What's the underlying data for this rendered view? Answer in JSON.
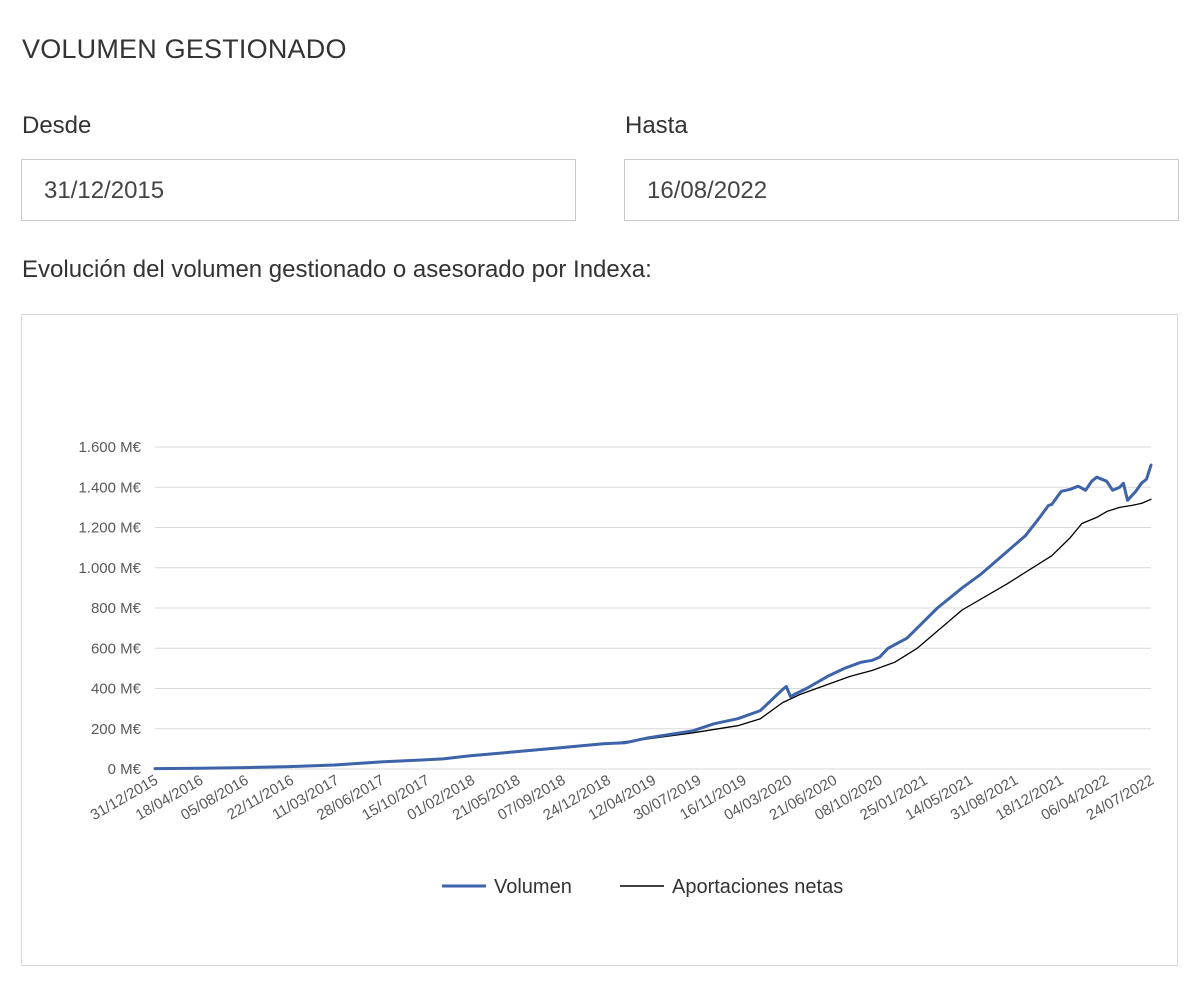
{
  "page": {
    "title": "VOLUMEN GESTIONADO",
    "from_label": "Desde",
    "to_label": "Hasta",
    "from_value": "31/12/2015",
    "to_value": "16/08/2022",
    "chart_caption": "Evolución del volumen gestionado o asesorado por Indexa:"
  },
  "colors": {
    "volumen": "#3d63a8",
    "aportaciones": "#000000",
    "grid": "#d9d9d9",
    "axis_text": "#595959"
  },
  "chart_data": {
    "type": "line",
    "title": "",
    "xlabel": "",
    "ylabel": "",
    "y_unit_suffix": " M€",
    "ylim": [
      0,
      1600
    ],
    "yticks": [
      0,
      200,
      400,
      600,
      800,
      1000,
      1200,
      1400,
      1600
    ],
    "ytick_labels": [
      "0 M€",
      "200 M€",
      "400 M€",
      "600 M€",
      "800 M€",
      "1.000 M€",
      "1.200 M€",
      "1.400 M€",
      "1.600 M€"
    ],
    "xrange": [
      "2015-12-31",
      "2022-08-16"
    ],
    "xtick_labels": [
      "31/12/2015",
      "18/04/2016",
      "05/08/2016",
      "22/11/2016",
      "11/03/2017",
      "28/06/2017",
      "15/10/2017",
      "01/02/2018",
      "21/05/2018",
      "07/09/2018",
      "24/12/2018",
      "12/04/2019",
      "30/07/2019",
      "16/11/2019",
      "04/03/2020",
      "21/06/2020",
      "08/10/2020",
      "25/01/2021",
      "14/05/2021",
      "31/08/2021",
      "18/12/2021",
      "06/04/2022",
      "24/07/2022"
    ],
    "grid": true,
    "legend_position": "bottom",
    "series": [
      {
        "name": "Volumen",
        "points": [
          [
            "2015-12-31",
            2
          ],
          [
            "2016-04-18",
            4
          ],
          [
            "2016-08-05",
            7
          ],
          [
            "2016-11-22",
            12
          ],
          [
            "2017-03-11",
            20
          ],
          [
            "2017-06-28",
            35
          ],
          [
            "2017-10-15",
            45
          ],
          [
            "2017-11-30",
            50
          ],
          [
            "2018-02-01",
            65
          ],
          [
            "2018-05-21",
            85
          ],
          [
            "2018-09-07",
            105
          ],
          [
            "2018-12-24",
            125
          ],
          [
            "2019-02-15",
            130
          ],
          [
            "2019-04-12",
            155
          ],
          [
            "2019-07-30",
            190
          ],
          [
            "2019-09-20",
            225
          ],
          [
            "2019-11-16",
            250
          ],
          [
            "2020-01-10",
            290
          ],
          [
            "2020-02-20",
            370
          ],
          [
            "2020-03-04",
            395
          ],
          [
            "2020-03-13",
            410
          ],
          [
            "2020-03-23",
            360
          ],
          [
            "2020-04-01",
            370
          ],
          [
            "2020-05-01",
            400
          ],
          [
            "2020-06-21",
            460
          ],
          [
            "2020-08-01",
            500
          ],
          [
            "2020-09-10",
            530
          ],
          [
            "2020-10-08",
            540
          ],
          [
            "2020-10-25",
            555
          ],
          [
            "2020-11-15",
            600
          ],
          [
            "2020-12-31",
            650
          ],
          [
            "2021-01-25",
            700
          ],
          [
            "2021-03-15",
            800
          ],
          [
            "2021-05-14",
            900
          ],
          [
            "2021-06-30",
            970
          ],
          [
            "2021-08-31",
            1080
          ],
          [
            "2021-10-15",
            1160
          ],
          [
            "2021-11-15",
            1240
          ],
          [
            "2021-12-10",
            1310
          ],
          [
            "2021-12-18",
            1315
          ],
          [
            "2022-01-10",
            1380
          ],
          [
            "2022-02-01",
            1390
          ],
          [
            "2022-02-20",
            1405
          ],
          [
            "2022-03-10",
            1385
          ],
          [
            "2022-03-25",
            1430
          ],
          [
            "2022-04-06",
            1450
          ],
          [
            "2022-04-30",
            1430
          ],
          [
            "2022-05-15",
            1385
          ],
          [
            "2022-06-01",
            1400
          ],
          [
            "2022-06-10",
            1420
          ],
          [
            "2022-06-20",
            1335
          ],
          [
            "2022-07-10",
            1380
          ],
          [
            "2022-07-24",
            1420
          ],
          [
            "2022-08-05",
            1440
          ],
          [
            "2022-08-16",
            1510
          ]
        ]
      },
      {
        "name": "Aportaciones netas",
        "points": [
          [
            "2015-12-31",
            2
          ],
          [
            "2016-04-18",
            4
          ],
          [
            "2016-08-05",
            7
          ],
          [
            "2016-11-22",
            12
          ],
          [
            "2017-03-11",
            20
          ],
          [
            "2017-06-28",
            33
          ],
          [
            "2017-10-15",
            45
          ],
          [
            "2018-02-01",
            62
          ],
          [
            "2018-05-21",
            82
          ],
          [
            "2018-09-07",
            102
          ],
          [
            "2018-12-24",
            122
          ],
          [
            "2019-04-12",
            150
          ],
          [
            "2019-07-30",
            180
          ],
          [
            "2019-11-16",
            215
          ],
          [
            "2020-01-10",
            250
          ],
          [
            "2020-03-04",
            330
          ],
          [
            "2020-04-15",
            370
          ],
          [
            "2020-06-21",
            420
          ],
          [
            "2020-08-15",
            460
          ],
          [
            "2020-10-08",
            490
          ],
          [
            "2020-12-01",
            530
          ],
          [
            "2021-01-25",
            600
          ],
          [
            "2021-05-14",
            790
          ],
          [
            "2021-08-31",
            920
          ],
          [
            "2021-12-18",
            1060
          ],
          [
            "2022-02-01",
            1150
          ],
          [
            "2022-03-01",
            1220
          ],
          [
            "2022-04-06",
            1250
          ],
          [
            "2022-05-01",
            1280
          ],
          [
            "2022-06-01",
            1300
          ],
          [
            "2022-07-01",
            1310
          ],
          [
            "2022-07-24",
            1320
          ],
          [
            "2022-08-16",
            1340
          ]
        ]
      }
    ]
  }
}
